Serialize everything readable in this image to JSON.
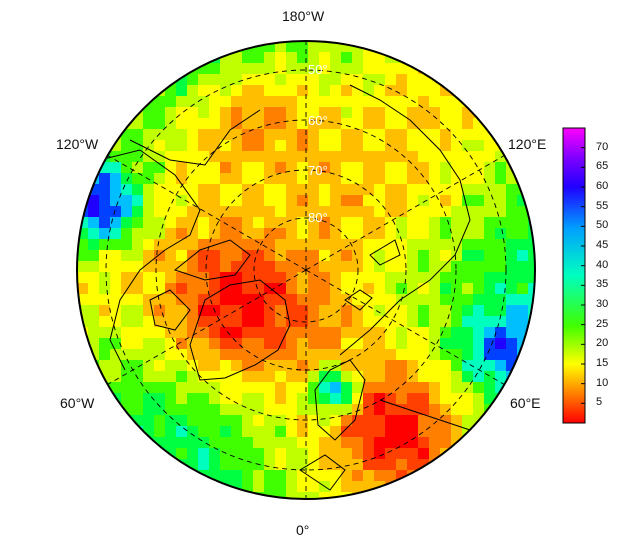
{
  "map": {
    "projection": "north-polar-stereographic",
    "longitude_labels": {
      "top": "180°W",
      "upper_left": "120°W",
      "upper_right": "120°E",
      "lower_left": "60°W",
      "lower_right": "60°E",
      "bottom": "0°"
    },
    "latitude_labels": [
      "50°",
      "60°",
      "70°",
      "80°"
    ]
  },
  "colorbar": {
    "ticks": [
      "70",
      "65",
      "60",
      "55",
      "50",
      "45",
      "40",
      "35",
      "30",
      "25",
      "20",
      "15",
      "10",
      "5"
    ],
    "min": 0,
    "max": 75,
    "colors": [
      "#ff0000",
      "#ff4000",
      "#ff8000",
      "#ffbf00",
      "#ffff00",
      "#bfff00",
      "#40ff00",
      "#00ff40",
      "#00ffbf",
      "#00bfff",
      "#0040ff",
      "#2000ff",
      "#8000ff",
      "#ff00ff"
    ]
  }
}
